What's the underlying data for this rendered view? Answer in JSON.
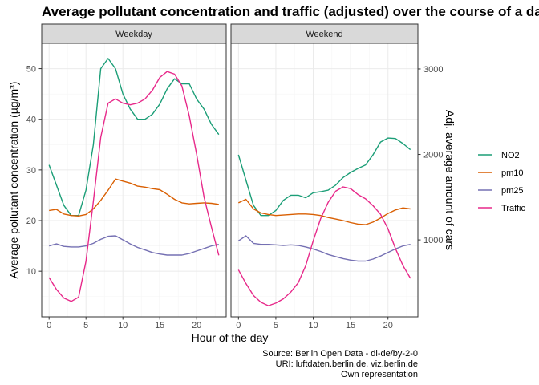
{
  "title": "Average pollutant concentration and traffic (adjusted) over the course of a day",
  "caption": [
    "Source: Berlin Open Data - dl-de/by-2-0",
    "URI: luftdaten.berlin.de, viz.berlin.de ",
    "Own representation"
  ],
  "colors": {
    "NO2": "#1b9e77",
    "pm10": "#d95f02",
    "pm25": "#7570b3",
    "Traffic": "#e7298a",
    "panel_border": "#333333",
    "grid_major": "#ebebeb",
    "grid_minor": "#f5f5f5",
    "strip_fill": "#d9d9d9"
  },
  "chart_data": {
    "type": "line",
    "xlabel": "Hour of the day",
    "ylabel": "Average pollutant concentration (µg/m³)",
    "y2label": "Adj. average amount of cars",
    "xlim": [
      -1,
      24
    ],
    "ylim": [
      1,
      55
    ],
    "y2lim": [
      100,
      3300
    ],
    "x_ticks": [
      0,
      5,
      10,
      15,
      20
    ],
    "y_ticks": [
      10,
      20,
      30,
      40,
      50
    ],
    "y2_ticks": [
      1000,
      2000,
      3000
    ],
    "legend_position": "right",
    "legend": [
      "NO2",
      "pm10",
      "pm25",
      "Traffic"
    ],
    "grid": true,
    "hours": [
      0,
      1,
      2,
      3,
      4,
      5,
      6,
      7,
      8,
      9,
      10,
      11,
      12,
      13,
      14,
      15,
      16,
      17,
      18,
      19,
      20,
      21,
      22,
      23
    ],
    "panels": [
      {
        "name": "Weekday",
        "series": [
          {
            "name": "NO2",
            "values": [
              31.0,
              27.0,
              23.0,
              21.0,
              21.0,
              26.0,
              35.0,
              50.0,
              52.0,
              50.0,
              45.0,
              42.0,
              40.0,
              40.0,
              41.0,
              43.0,
              46.0,
              48.0,
              47.0,
              47.0,
              44.0,
              42.0,
              39.0,
              37.0
            ]
          },
          {
            "name": "pm10",
            "values": [
              22.0,
              22.2,
              21.3,
              21.0,
              20.9,
              21.2,
              22.3,
              24.0,
              26.0,
              28.2,
              27.8,
              27.4,
              26.8,
              26.6,
              26.3,
              26.1,
              25.2,
              24.2,
              23.5,
              23.3,
              23.4,
              23.5,
              23.4,
              23.2
            ]
          },
          {
            "name": "pm25",
            "values": [
              15.0,
              15.4,
              14.9,
              14.8,
              14.8,
              15.0,
              15.5,
              16.3,
              16.9,
              17.0,
              16.2,
              15.4,
              14.7,
              14.2,
              13.7,
              13.4,
              13.2,
              13.2,
              13.2,
              13.5,
              14.0,
              14.5,
              15.0,
              15.3
            ]
          },
          {
            "name": "Traffic",
            "values": [
              560,
              420,
              320,
              280,
              330,
              750,
              1450,
              2200,
              2600,
              2650,
              2600,
              2580,
              2600,
              2650,
              2750,
              2900,
              2970,
              2940,
              2800,
              2450,
              2000,
              1500,
              1150,
              820
            ]
          }
        ]
      },
      {
        "name": "Weekend",
        "series": [
          {
            "name": "NO2",
            "values": [
              33.0,
              28.0,
              23.0,
              21.0,
              21.0,
              22.0,
              24.0,
              25.0,
              25.0,
              24.5,
              25.5,
              25.7,
              26.0,
              27.0,
              28.5,
              29.5,
              30.3,
              31.0,
              33.0,
              35.5,
              36.3,
              36.2,
              35.2,
              34.0
            ]
          },
          {
            "name": "pm10",
            "values": [
              23.5,
              24.2,
              22.3,
              21.5,
              21.2,
              21.0,
              21.1,
              21.2,
              21.3,
              21.3,
              21.2,
              21.0,
              20.6,
              20.3,
              20.0,
              19.6,
              19.3,
              19.2,
              19.7,
              20.5,
              21.4,
              22.1,
              22.5,
              22.3
            ]
          },
          {
            "name": "pm25",
            "values": [
              16.0,
              17.0,
              15.5,
              15.3,
              15.3,
              15.2,
              15.1,
              15.2,
              15.1,
              14.8,
              14.4,
              13.9,
              13.3,
              12.9,
              12.5,
              12.2,
              12.0,
              12.0,
              12.4,
              13.0,
              13.7,
              14.4,
              15.0,
              15.3
            ]
          },
          {
            "name": "Traffic",
            "values": [
              650,
              490,
              350,
              270,
              230,
              260,
              310,
              390,
              500,
              700,
              990,
              1250,
              1440,
              1570,
              1620,
              1600,
              1530,
              1480,
              1400,
              1300,
              1130,
              900,
              700,
              550
            ]
          }
        ]
      }
    ]
  }
}
